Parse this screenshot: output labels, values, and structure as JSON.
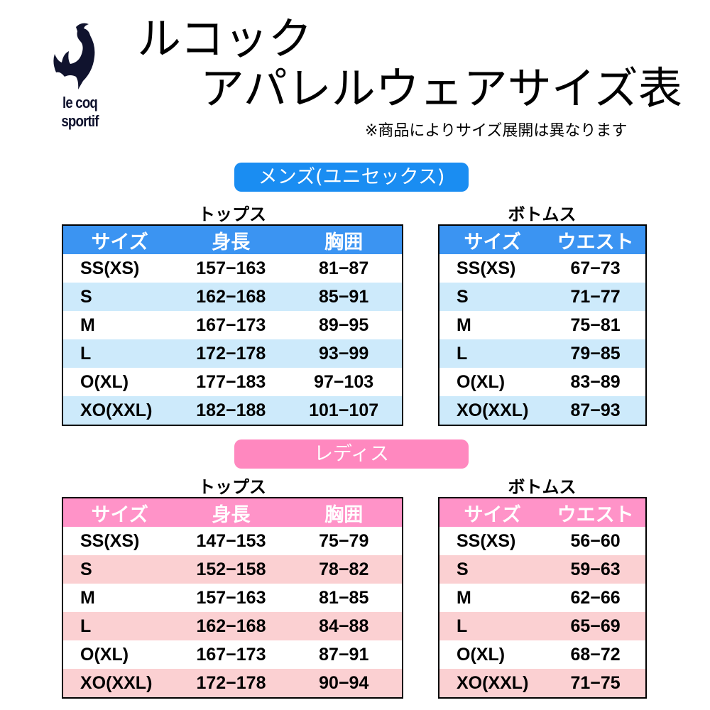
{
  "brand": {
    "logo_text": "le coq sportif",
    "logo_color": "#10132e"
  },
  "title": {
    "line1": "ルコック",
    "line2": "アパレルウェアサイズ表",
    "note": "※商品によりサイズ展開は異なります"
  },
  "colors": {
    "mens_header": "#3b94f2",
    "mens_stripe": "#cdeafb",
    "mens_pill": "#1a8df2",
    "ladies_header": "#ff93c8",
    "ladies_stripe": "#fbd0d2",
    "ladies_pill": "#ff88bf"
  },
  "mens": {
    "label": "メンズ(ユニセックス)",
    "tops": {
      "title": "トップス",
      "headers": [
        "サイズ",
        "身長",
        "胸囲"
      ],
      "rows": [
        [
          "SS(XS)",
          "157−163",
          "81−87"
        ],
        [
          "S",
          "162−168",
          "85−91"
        ],
        [
          "M",
          "167−173",
          "89−95"
        ],
        [
          "L",
          "172−178",
          "93−99"
        ],
        [
          "O(XL)",
          "177−183",
          "97−103"
        ],
        [
          "XO(XXL)",
          "182−188",
          "101−107"
        ]
      ]
    },
    "bottoms": {
      "title": "ボトムス",
      "headers": [
        "サイズ",
        "ウエスト"
      ],
      "rows": [
        [
          "SS(XS)",
          "67−73"
        ],
        [
          "S",
          "71−77"
        ],
        [
          "M",
          "75−81"
        ],
        [
          "L",
          "79−85"
        ],
        [
          "O(XL)",
          "83−89"
        ],
        [
          "XO(XXL)",
          "87−93"
        ]
      ]
    }
  },
  "ladies": {
    "label": "レディス",
    "tops": {
      "title": "トップス",
      "headers": [
        "サイズ",
        "身長",
        "胸囲"
      ],
      "rows": [
        [
          "SS(XS)",
          "147−153",
          "75−79"
        ],
        [
          "S",
          "152−158",
          "78−82"
        ],
        [
          "M",
          "157−163",
          "81−85"
        ],
        [
          "L",
          "162−168",
          "84−88"
        ],
        [
          "O(XL)",
          "167−173",
          "87−91"
        ],
        [
          "XO(XXL)",
          "172−178",
          "90−94"
        ]
      ]
    },
    "bottoms": {
      "title": "ボトムス",
      "headers": [
        "サイズ",
        "ウエスト"
      ],
      "rows": [
        [
          "SS(XS)",
          "56−60"
        ],
        [
          "S",
          "59−63"
        ],
        [
          "M",
          "62−66"
        ],
        [
          "L",
          "65−69"
        ],
        [
          "O(XL)",
          "68−72"
        ],
        [
          "XO(XXL)",
          "71−75"
        ]
      ]
    }
  }
}
